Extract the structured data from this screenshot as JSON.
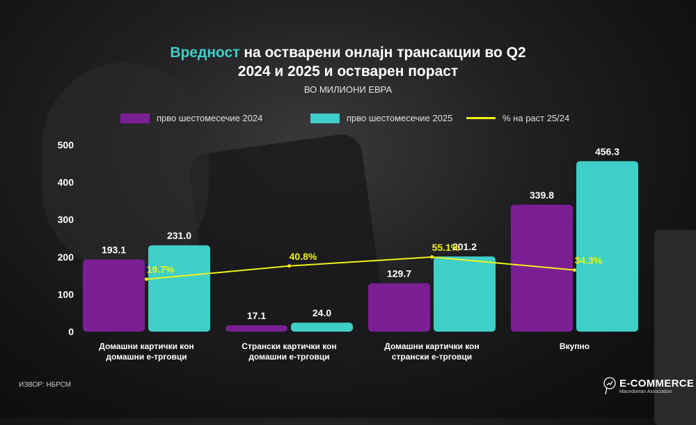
{
  "title": {
    "accent": "Вредност",
    "rest_line1": " на остварени онлајн трансакции во Q2",
    "line2": "2024 и 2025 и остварен пораст"
  },
  "subtitle": "ВО МИЛИОНИ ЕВРА",
  "colors": {
    "purple": "#7b1f94",
    "teal": "#3ecfc8",
    "line": "#f2f21a"
  },
  "chart_data": {
    "type": "bar",
    "title": "Вредност на остварени онлајн трансакции во Q2 2024 и 2025 и остварен пораст",
    "subtitle": "ВО МИЛИОНИ ЕВРА",
    "categories": [
      [
        "Домашни картички кон",
        "домашни е-трговци"
      ],
      [
        "Странски картички кон",
        "домашни е-трговци"
      ],
      [
        "Домашни картички кон",
        "странски е-трговци"
      ],
      [
        "Вкупно"
      ]
    ],
    "series": [
      {
        "name": "прво шестомесечие 2024",
        "type": "bar",
        "values": [
          193.1,
          17.1,
          129.7,
          339.8
        ],
        "labels": [
          "193.1",
          "17.1",
          "129.7",
          "339.8"
        ]
      },
      {
        "name": "прво шестомесечие 2025",
        "type": "bar",
        "values": [
          231.0,
          24.0,
          201.2,
          456.3
        ],
        "labels": [
          "231.0",
          "24.0",
          "201.2",
          "456.3"
        ]
      },
      {
        "name": "% на раст 25/24",
        "type": "line",
        "axis": "secondary",
        "values": [
          19.7,
          40.8,
          55.1,
          34.3
        ],
        "labels": [
          "19.7%",
          "40.8%",
          "55.1%",
          "34.3%"
        ]
      }
    ],
    "ylim": [
      0,
      500
    ],
    "yticks": [
      "0",
      "100",
      "200",
      "300",
      "400",
      "500"
    ],
    "y2lim": [
      -64,
      234
    ],
    "legend": "top",
    "grid": false
  },
  "source": "ИЗВОР: НБРСМ",
  "logo": {
    "name": "E-COMMERCE",
    "tagline": "Macedonian Association"
  }
}
